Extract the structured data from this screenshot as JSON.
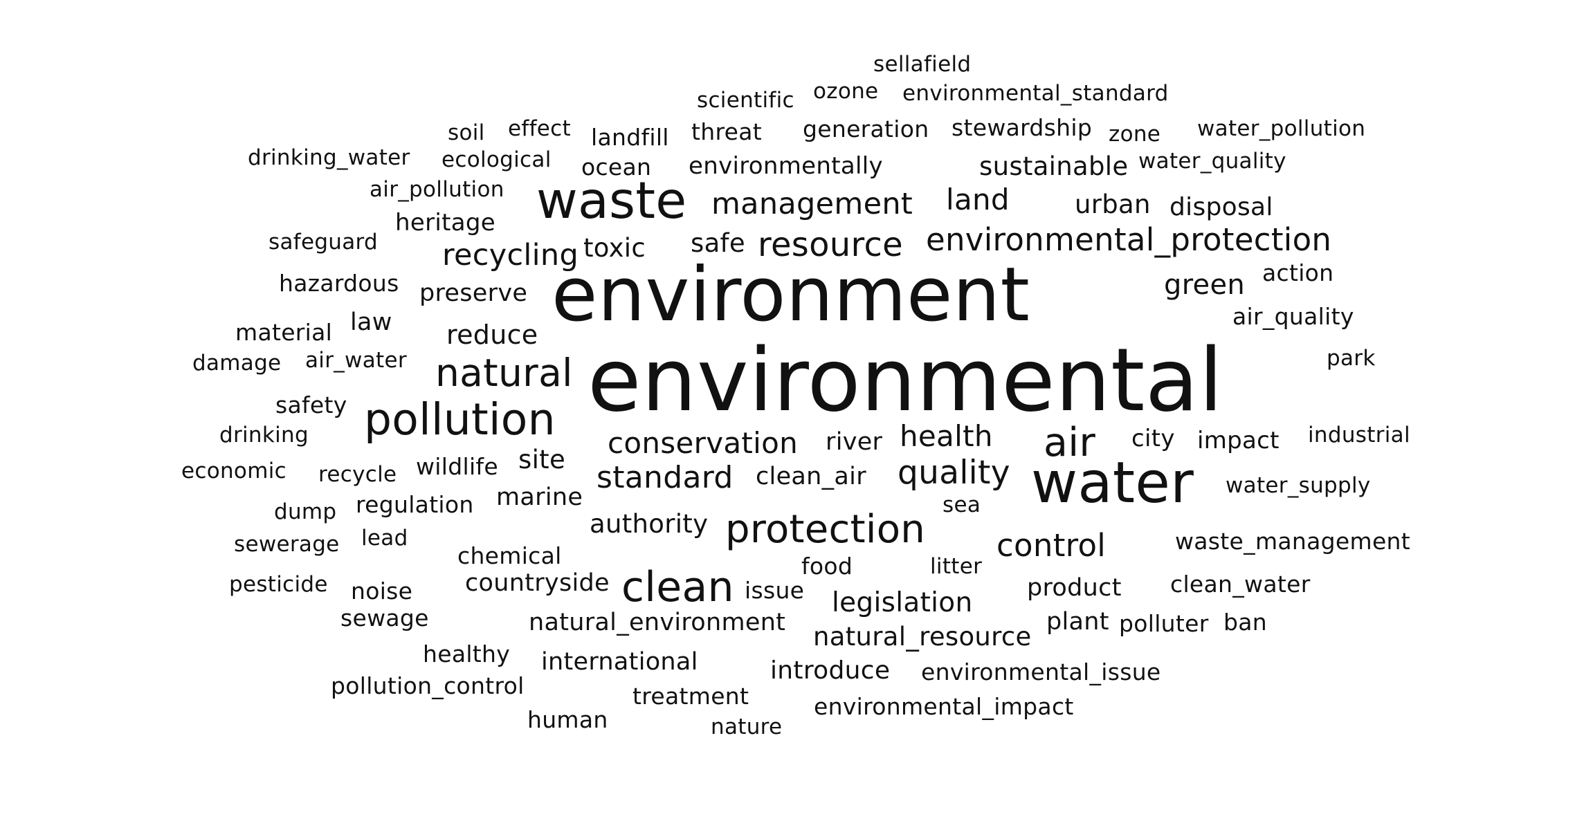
{
  "cloud": {
    "text_color": "#111111",
    "background": "#ffffff",
    "words": [
      "sellafield",
      "scientific",
      "ozone",
      "environmental_standard",
      "soil",
      "effect",
      "landfill",
      "threat",
      "generation",
      "stewardship",
      "zone",
      "water_pollution",
      "drinking_water",
      "ecological",
      "ocean",
      "environmentally",
      "sustainable",
      "water_quality",
      "air_pollution",
      "waste",
      "management",
      "land",
      "urban",
      "disposal",
      "heritage",
      "safeguard",
      "toxic",
      "safe",
      "resource",
      "environmental_protection",
      "recycling",
      "hazardous",
      "action",
      "environment",
      "green",
      "preserve",
      "air_quality",
      "material",
      "law",
      "reduce",
      "damage",
      "air_water",
      "natural",
      "environmental",
      "park",
      "safety",
      "pollution",
      "drinking",
      "conservation",
      "river",
      "health",
      "air",
      "city",
      "impact",
      "industrial",
      "economic",
      "recycle",
      "wildlife",
      "site",
      "standard",
      "clean_air",
      "quality",
      "water",
      "water_supply",
      "dump",
      "regulation",
      "marine",
      "sea",
      "authority",
      "protection",
      "control",
      "sewerage",
      "lead",
      "chemical",
      "waste_management",
      "food",
      "litter",
      "pesticide",
      "noise",
      "countryside",
      "clean",
      "issue",
      "product",
      "clean_water",
      "legislation",
      "sewage",
      "natural_environment",
      "plant",
      "polluter",
      "ban",
      "natural_resource",
      "healthy",
      "international",
      "introduce",
      "environmental_issue",
      "pollution_control",
      "treatment",
      "environmental_impact",
      "human",
      "nature"
    ]
  }
}
